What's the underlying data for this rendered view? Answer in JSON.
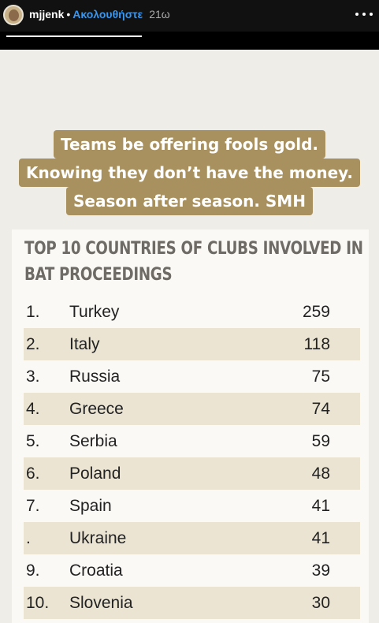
{
  "header": {
    "username": "mjjenk",
    "separator": "•",
    "follow_label": "Ακολουθήστε",
    "time": "21ω"
  },
  "story_progress": 1.0,
  "caption": {
    "lines": [
      "Teams be offering fools gold.",
      "Knowing they don’t have the money.",
      "Season after season. SMH"
    ]
  },
  "table": {
    "title_lines": [
      "TOP 10 COUNTRIES OF CLUBS INVOLVED IN",
      "BAT PROCEEDINGS"
    ],
    "rows": [
      {
        "rank": "1.",
        "country": "Turkey",
        "value": "259"
      },
      {
        "rank": "2.",
        "country": "Italy",
        "value": "118"
      },
      {
        "rank": "3.",
        "country": "Russia",
        "value": "75"
      },
      {
        "rank": "4.",
        "country": "Greece",
        "value": "74"
      },
      {
        "rank": "5.",
        "country": "Serbia",
        "value": "59"
      },
      {
        "rank": "6.",
        "country": "Poland",
        "value": "48"
      },
      {
        "rank": "7.",
        "country": "Spain",
        "value": "41"
      },
      {
        "rank": ".",
        "country": "Ukraine",
        "value": "41"
      },
      {
        "rank": "9.",
        "country": "Croatia",
        "value": "39"
      },
      {
        "rank": "10.",
        "country": "Slovenia",
        "value": "30"
      }
    ]
  },
  "colors": {
    "caption_bg": "#a8915e",
    "row_shade": "#ebe4d3",
    "title_text": "#6e6b66",
    "follow_link": "#3897f0"
  }
}
